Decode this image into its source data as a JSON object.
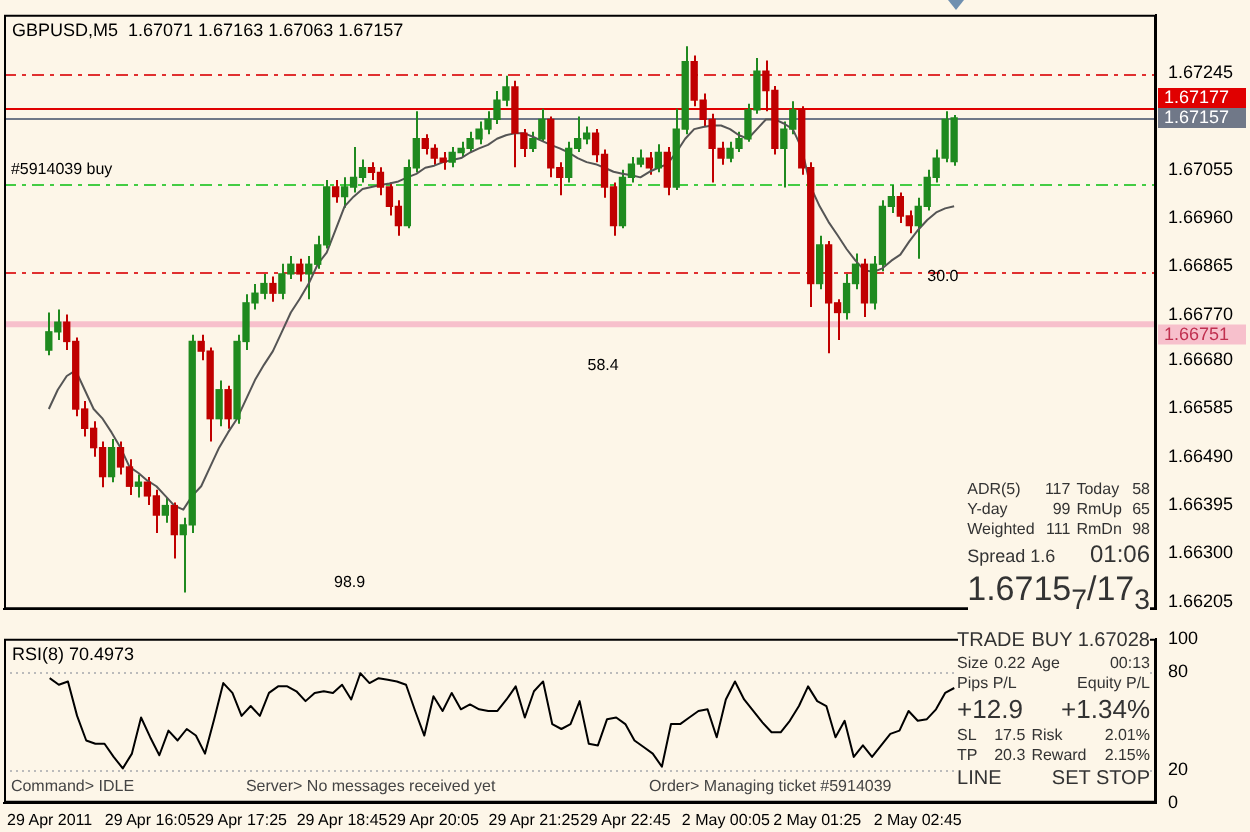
{
  "chart_data": [
    {
      "type": "candlestick",
      "title": "GBPUSD,M5  1.67071 1.67163 1.67063 1.67157",
      "categories": [
        null,
        null,
        null,
        null,
        null,
        null,
        null,
        null,
        null,
        null,
        null,
        null,
        null,
        null,
        null,
        null,
        null,
        null,
        null,
        null,
        null,
        null,
        null,
        null,
        null,
        null,
        null,
        null,
        null,
        null,
        null,
        null,
        null,
        null,
        null,
        null,
        null,
        null,
        null,
        null,
        null,
        null,
        null,
        null,
        null,
        null,
        null,
        null,
        null,
        null,
        null,
        null,
        null,
        null,
        null,
        null,
        null,
        null,
        null,
        null,
        null,
        null,
        null,
        null,
        null,
        null,
        null,
        null,
        null,
        null,
        null,
        null,
        null,
        null,
        null,
        null,
        null,
        null,
        null,
        null,
        null,
        null,
        null,
        null,
        null,
        null,
        null,
        null,
        null,
        null,
        null,
        null,
        null,
        null,
        null,
        null,
        null,
        null,
        null,
        null,
        null,
        null
      ],
      "ohlc": [
        [
          1.667,
          1.66774,
          1.6669,
          1.66736
        ],
        [
          1.66736,
          1.6678,
          1.6672,
          1.66755
        ],
        [
          1.66755,
          1.6677,
          1.667,
          1.66717
        ],
        [
          1.66717,
          1.66725,
          1.6657,
          1.66584
        ],
        [
          1.66584,
          1.666,
          1.6653,
          1.66546
        ],
        [
          1.66546,
          1.6656,
          1.6649,
          1.66508
        ],
        [
          1.66508,
          1.6652,
          1.6643,
          1.66451
        ],
        [
          1.66451,
          1.66525,
          1.6644,
          1.66508
        ],
        [
          1.66508,
          1.6652,
          1.66455,
          1.6647
        ],
        [
          1.6647,
          1.66485,
          1.66415,
          1.66432
        ],
        [
          1.66432,
          1.66455,
          1.6641,
          1.6644
        ],
        [
          1.6644,
          1.6645,
          1.66395,
          1.66413
        ],
        [
          1.66413,
          1.66425,
          1.6634,
          1.66375
        ],
        [
          1.66375,
          1.6641,
          1.6636,
          1.66394
        ],
        [
          1.66394,
          1.664,
          1.6629,
          1.66337
        ],
        [
          1.66337,
          1.6637,
          1.66223,
          1.66356
        ],
        [
          1.66356,
          1.6673,
          1.6634,
          1.66717
        ],
        [
          1.66717,
          1.6673,
          1.6668,
          1.66698
        ],
        [
          1.66698,
          1.66705,
          1.6652,
          1.66565
        ],
        [
          1.66565,
          1.6664,
          1.6655,
          1.66622
        ],
        [
          1.66622,
          1.6663,
          1.66545,
          1.66565
        ],
        [
          1.66565,
          1.6673,
          1.66555,
          1.66717
        ],
        [
          1.66717,
          1.6681,
          1.667,
          1.66793
        ],
        [
          1.66793,
          1.6683,
          1.6678,
          1.66812
        ],
        [
          1.66812,
          1.6685,
          1.668,
          1.66831
        ],
        [
          1.66831,
          1.66845,
          1.66795,
          1.66812
        ],
        [
          1.66812,
          1.6687,
          1.668,
          1.6685
        ],
        [
          1.6685,
          1.66885,
          1.6684,
          1.66869
        ],
        [
          1.66869,
          1.6688,
          1.66835,
          1.6685
        ],
        [
          1.6685,
          1.66885,
          1.668,
          1.66869
        ],
        [
          1.66869,
          1.66925,
          1.6686,
          1.66907
        ],
        [
          1.66907,
          1.67035,
          1.669,
          1.67021
        ],
        [
          1.67021,
          1.67035,
          1.6699,
          1.67002
        ],
        [
          1.67002,
          1.6704,
          1.6698,
          1.67021
        ],
        [
          1.67021,
          1.671,
          1.6701,
          1.6704
        ],
        [
          1.6704,
          1.67075,
          1.6703,
          1.67059
        ],
        [
          1.67059,
          1.6707,
          1.67035,
          1.6705
        ],
        [
          1.6705,
          1.6706,
          1.67005,
          1.67021
        ],
        [
          1.67021,
          1.6703,
          1.66965,
          1.66983
        ],
        [
          1.66983,
          1.66995,
          1.66925,
          1.66945
        ],
        [
          1.66945,
          1.67075,
          1.6694,
          1.67059
        ],
        [
          1.67059,
          1.6717,
          1.6705,
          1.67116
        ],
        [
          1.67116,
          1.67125,
          1.67085,
          1.67097
        ],
        [
          1.67097,
          1.67105,
          1.67065,
          1.67078
        ],
        [
          1.67078,
          1.6709,
          1.67055,
          1.6707
        ],
        [
          1.6707,
          1.671,
          1.6706,
          1.67089
        ],
        [
          1.67089,
          1.6711,
          1.6708,
          1.67097
        ],
        [
          1.67097,
          1.6713,
          1.6709,
          1.67116
        ],
        [
          1.67116,
          1.6715,
          1.67105,
          1.67135
        ],
        [
          1.67135,
          1.6717,
          1.67125,
          1.67154
        ],
        [
          1.67154,
          1.6721,
          1.67145,
          1.67192
        ],
        [
          1.67192,
          1.6724,
          1.6718,
          1.67218
        ],
        [
          1.67218,
          1.6723,
          1.6706,
          1.67127
        ],
        [
          1.67127,
          1.67135,
          1.6708,
          1.67097
        ],
        [
          1.67097,
          1.6713,
          1.6709,
          1.67116
        ],
        [
          1.67116,
          1.67175,
          1.6711,
          1.67154
        ],
        [
          1.67154,
          1.6716,
          1.6704,
          1.67059
        ],
        [
          1.67059,
          1.6707,
          1.67005,
          1.6704
        ],
        [
          1.6704,
          1.6711,
          1.6703,
          1.67097
        ],
        [
          1.67097,
          1.6716,
          1.6709,
          1.67116
        ],
        [
          1.67116,
          1.6714,
          1.67105,
          1.67127
        ],
        [
          1.67127,
          1.67135,
          1.6707,
          1.67085
        ],
        [
          1.67085,
          1.67095,
          1.67,
          1.67021
        ],
        [
          1.67021,
          1.6703,
          1.66925,
          1.66945
        ],
        [
          1.66945,
          1.67055,
          1.6694,
          1.6704
        ],
        [
          1.6704,
          1.6708,
          1.6703,
          1.67066
        ],
        [
          1.67066,
          1.67095,
          1.6706,
          1.67078
        ],
        [
          1.67078,
          1.6709,
          1.67045,
          1.67059
        ],
        [
          1.67059,
          1.67105,
          1.6705,
          1.67089
        ],
        [
          1.67089,
          1.671,
          1.67005,
          1.67021
        ],
        [
          1.67021,
          1.67175,
          1.67015,
          1.67135
        ],
        [
          1.67135,
          1.67298,
          1.67125,
          1.67268
        ],
        [
          1.67268,
          1.6728,
          1.6718,
          1.67192
        ],
        [
          1.67192,
          1.67205,
          1.6714,
          1.67154
        ],
        [
          1.67154,
          1.67165,
          1.6703,
          1.67097
        ],
        [
          1.67097,
          1.6711,
          1.67065,
          1.67078
        ],
        [
          1.67078,
          1.6711,
          1.6707,
          1.67097
        ],
        [
          1.67097,
          1.6713,
          1.6709,
          1.67116
        ],
        [
          1.67116,
          1.67185,
          1.6711,
          1.67173
        ],
        [
          1.67173,
          1.67275,
          1.67165,
          1.67249
        ],
        [
          1.67249,
          1.6727,
          1.6717,
          1.67211
        ],
        [
          1.67211,
          1.6722,
          1.67085,
          1.67097
        ],
        [
          1.67097,
          1.6715,
          1.6702,
          1.67135
        ],
        [
          1.67135,
          1.6719,
          1.67125,
          1.67173
        ],
        [
          1.67173,
          1.6718,
          1.67045,
          1.67059
        ],
        [
          1.67059,
          1.6707,
          1.66785,
          1.66831
        ],
        [
          1.66831,
          1.66925,
          1.6682,
          1.66907
        ],
        [
          1.66907,
          1.66915,
          1.66694,
          1.66793
        ],
        [
          1.66793,
          1.668,
          1.6672,
          1.66774
        ],
        [
          1.66774,
          1.6685,
          1.6676,
          1.66831
        ],
        [
          1.66831,
          1.6689,
          1.6682,
          1.66869
        ],
        [
          1.66869,
          1.6688,
          1.66765,
          1.66793
        ],
        [
          1.66793,
          1.66885,
          1.6678,
          1.66869
        ],
        [
          1.66869,
          1.66995,
          1.66855,
          1.66983
        ],
        [
          1.66983,
          1.67025,
          1.6697,
          1.67002
        ],
        [
          1.67002,
          1.6701,
          1.6695,
          1.66964
        ],
        [
          1.66964,
          1.66975,
          1.6693,
          1.66945
        ],
        [
          1.66945,
          1.67,
          1.6688,
          1.66983
        ],
        [
          1.66983,
          1.67055,
          1.66975,
          1.6704
        ],
        [
          1.6704,
          1.67095,
          1.6703,
          1.67078
        ],
        [
          1.67078,
          1.6717,
          1.6707,
          1.67154
        ],
        [
          1.67071,
          1.67163,
          1.67063,
          1.67157
        ]
      ],
      "series": [
        {
          "type": "line",
          "color": "#555555",
          "values": [
            1.66584,
            1.66622,
            1.66649,
            1.6666,
            1.66622,
            1.66584,
            1.66565,
            1.66538,
            1.66508,
            1.6647,
            1.66458,
            1.66443,
            1.66432,
            1.66413,
            1.66394,
            1.66386,
            1.66413,
            1.66432,
            1.6647,
            1.66508,
            1.66538,
            1.66565,
            1.66603,
            1.66641,
            1.66671,
            1.66698,
            1.66736,
            1.66774,
            1.66801,
            1.66831,
            1.66869,
            1.66892,
            1.66937,
            1.66983,
            1.67002,
            1.67017,
            1.67021,
            1.67025,
            1.67028,
            1.67032,
            1.6704,
            1.67047,
            1.67059,
            1.67063,
            1.6707,
            1.67074,
            1.67078,
            1.67089,
            1.67097,
            1.67104,
            1.67116,
            1.67123,
            1.67127,
            1.67127,
            1.6712,
            1.67112,
            1.67104,
            1.67097,
            1.67089,
            1.67078,
            1.6707,
            1.67066,
            1.67059,
            1.67051,
            1.67047,
            1.67044,
            1.6704,
            1.67051,
            1.67059,
            1.67066,
            1.67089,
            1.67116,
            1.67135,
            1.67139,
            1.67142,
            1.67142,
            1.67135,
            1.67123,
            1.67116,
            1.67135,
            1.67154,
            1.67154,
            1.67146,
            1.67135,
            1.67097,
            1.67021,
            1.66983,
            1.66952,
            1.66926,
            1.66899,
            1.66876,
            1.66857,
            1.66854,
            1.66861,
            1.66876,
            1.66888,
            1.66914,
            1.66937,
            1.66956,
            1.66971,
            1.66979,
            1.66983
          ]
        }
      ],
      "ylim": [
        1.6619,
        1.6736
      ],
      "yticks": [
        1.67245,
        1.67055,
        {
          "value": 1.6696,
          "label": "1.66960"
        },
        1.66865,
        {
          "value": 1.6677,
          "label": "1.66770"
        },
        {
          "value": 1.6668,
          "label": "1.66680"
        },
        1.66585,
        {
          "value": 1.6649,
          "label": "1.66490"
        },
        1.66395,
        {
          "value": 1.663,
          "label": "1.66300"
        },
        1.66205
      ],
      "ref_lines": [
        {
          "axis": "y",
          "value": 1.67245,
          "color": "#e03030",
          "line_style": "dashed"
        },
        {
          "axis": "y",
          "value": 1.67157,
          "label": "1.67157",
          "color": "#707888",
          "line_style": "solid"
        },
        {
          "axis": "y",
          "value": 1.67177,
          "label": "1.67177",
          "color": "#e00000",
          "line_style": "solid"
        },
        {
          "axis": "y",
          "value": 1.67028,
          "color": "#44cc44",
          "line_style": "dashed"
        },
        {
          "axis": "y",
          "value": 1.66855,
          "color": "#e03030",
          "line_style": "dashed"
        }
      ],
      "bands": [
        {
          "axis": "y",
          "from": 1.66745,
          "to": 1.66757,
          "label": "1.66751",
          "color": "#f7c0cc"
        }
      ],
      "annotations": [
        "#5914039 buy",
        "98.9",
        "58.4",
        "30.0"
      ],
      "tick_labels": "y",
      "grid": false,
      "legend": false
    },
    {
      "type": "line",
      "title": "RSI(8) 70.4973",
      "categories": [
        "29 Apr 2011",
        null,
        null,
        null,
        null,
        null,
        null,
        null,
        null,
        null,
        null,
        "29 Apr 16:05",
        null,
        null,
        null,
        null,
        null,
        null,
        null,
        null,
        null,
        "29 Apr 17:25",
        null,
        null,
        null,
        null,
        null,
        null,
        null,
        null,
        null,
        null,
        "29 Apr 18:45",
        null,
        null,
        null,
        null,
        null,
        null,
        null,
        null,
        null,
        "29 Apr 20:05",
        null,
        null,
        null,
        null,
        null,
        null,
        null,
        null,
        null,
        null,
        "29 Apr 21:25",
        null,
        null,
        null,
        null,
        null,
        null,
        null,
        null,
        null,
        "29 Apr 22:45",
        null,
        null,
        null,
        null,
        null,
        null,
        null,
        null,
        null,
        null,
        "2 May 00:05",
        null,
        null,
        null,
        null,
        null,
        null,
        null,
        null,
        null,
        "2 May 01:25",
        null,
        null,
        null,
        null,
        null,
        null,
        null,
        null,
        null,
        null,
        "2 May 02:45",
        null,
        null,
        null,
        null
      ],
      "series": [
        {
          "color": "#000000",
          "values": [
            76,
            72,
            74,
            53,
            38,
            36,
            36,
            28,
            21,
            30,
            52,
            40,
            29,
            44,
            38,
            45,
            41,
            30,
            51,
            73,
            67,
            53,
            59,
            53,
            67,
            71,
            71,
            68,
            62,
            67,
            68,
            67,
            72,
            63,
            79,
            73,
            76,
            75,
            74,
            72,
            56,
            41,
            65,
            56,
            67,
            57,
            60,
            57,
            56,
            56,
            63,
            71,
            52,
            68,
            74,
            48,
            45,
            48,
            62,
            36,
            35,
            51,
            52,
            48,
            38,
            34,
            30,
            22,
            48,
            48,
            52,
            56,
            57,
            40,
            63,
            74,
            63,
            56,
            49,
            43,
            43,
            50,
            59,
            71,
            62,
            59,
            40,
            50,
            28,
            35,
            28,
            35,
            42,
            44,
            56,
            50,
            51,
            57,
            67,
            70
          ]
        }
      ],
      "ylim": [
        0,
        100
      ],
      "yticks": [
        0,
        20,
        80,
        100
      ],
      "ref_lines": [
        {
          "axis": "y",
          "value": 80,
          "color": "#bbbbbb",
          "line_style": "dotted"
        },
        {
          "axis": "y",
          "value": 20,
          "color": "#bbbbbb",
          "line_style": "dotted"
        }
      ],
      "annotations": [
        "Command> IDLE",
        "Server> No messages received yet",
        "Order> Managing ticket #5914039"
      ],
      "marker": "none",
      "grid": false,
      "legend": false
    },
    {
      "type": "other",
      "annotations": [
        "ADR(5)",
        "117",
        "Today",
        "58",
        "Y-day",
        "99",
        "RmUp",
        "65",
        "Weighted",
        "111",
        "RmDn",
        "98",
        "Spread 1.6",
        "01:06",
        "1.6715$_{7}$/17$_{3}$"
      ]
    },
    {
      "type": "other",
      "annotations": [
        "TRADE",
        "BUY 1.67028",
        "Size",
        "0.22",
        "Age",
        "00:13",
        "Pips P/L",
        "Equity P/L",
        "+12.9",
        "+1.34%",
        "SL",
        "17.5",
        "Risk",
        "2.01%",
        "TP",
        "20.3",
        "Reward",
        "2.15%",
        "LINE",
        "SET STOP"
      ]
    }
  ]
}
